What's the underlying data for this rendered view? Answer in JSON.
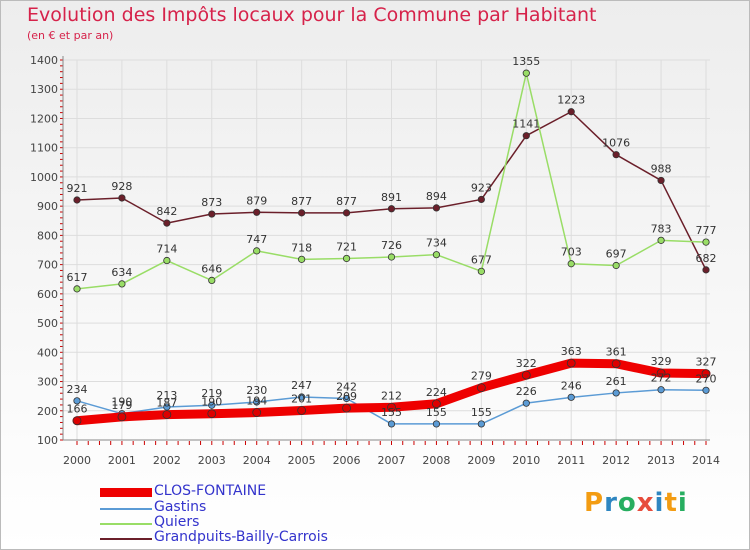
{
  "title": "Evolution des Impôts locaux pour la Commune par Habitant",
  "subtitle": "(en € et par an)",
  "logo": {
    "letters": [
      "P",
      "r",
      "o",
      "x",
      "i",
      "t",
      "i"
    ],
    "colors": [
      "#f39c12",
      "#2e86c1",
      "#27ae60",
      "#e74c3c",
      "#2e86c1",
      "#f39c12",
      "#27ae60"
    ]
  },
  "chart_data": {
    "type": "line",
    "x": [
      "2000",
      "2001",
      "2002",
      "2003",
      "2004",
      "2005",
      "2006",
      "2007",
      "2008",
      "2009",
      "2010",
      "2011",
      "2012",
      "2013",
      "2014"
    ],
    "ylim": [
      100,
      1400
    ],
    "yticks": [
      "100",
      "200",
      "300",
      "400",
      "500",
      "600",
      "700",
      "800",
      "900",
      "1000",
      "1100",
      "1200",
      "1300",
      "1400"
    ],
    "grid": true,
    "legend_position": "bottom-left",
    "series": [
      {
        "name": "Grandpuits-Bailly-Carrois",
        "color": "#6b1f2a",
        "values": [
          921,
          928,
          842,
          873,
          879,
          877,
          877,
          891,
          894,
          923,
          1141,
          1223,
          1076,
          988,
          682
        ],
        "labels": [
          "921",
          "928",
          "842",
          "873",
          "879",
          "877",
          "877",
          "891",
          "894",
          "923",
          "1141",
          "1223",
          "1076",
          "988",
          "682"
        ]
      },
      {
        "name": "Quiers",
        "color": "#99dd66",
        "values": [
          617,
          634,
          714,
          646,
          747,
          718,
          721,
          726,
          734,
          677,
          1355,
          703,
          697,
          783,
          777
        ],
        "labels": [
          "617",
          "634",
          "714",
          "646",
          "747",
          "718",
          "721",
          "726",
          "734",
          "677",
          "1355",
          "703",
          "697",
          "783",
          "777"
        ]
      },
      {
        "name": "Gastins",
        "color": "#5b9bd5",
        "values": [
          234,
          190,
          213,
          219,
          230,
          247,
          242,
          155,
          155,
          155,
          226,
          246,
          261,
          272,
          270
        ],
        "labels": [
          "234",
          "190",
          "213",
          "219",
          "230",
          "247",
          "242",
          "155",
          "155",
          "155",
          "226",
          "246",
          "261",
          "272",
          "270"
        ]
      },
      {
        "name": "CLOS-FONTAINE",
        "color": "#ee0000",
        "values": [
          166,
          179,
          187,
          190,
          194,
          201,
          209,
          212,
          224,
          279,
          322,
          363,
          361,
          329,
          327
        ],
        "labels": [
          "166",
          "179",
          "187",
          "190",
          "194",
          "201",
          "209",
          "212",
          "224",
          "279",
          "322",
          "363",
          "361",
          "329",
          "327"
        ]
      }
    ]
  },
  "legend": [
    {
      "name": "CLOS-FONTAINE",
      "color": "#ee0000"
    },
    {
      "name": "Gastins",
      "color": "#5b9bd5"
    },
    {
      "name": "Quiers",
      "color": "#99dd66"
    },
    {
      "name": "Grandpuits-Bailly-Carrois",
      "color": "#6b1f2a"
    }
  ]
}
